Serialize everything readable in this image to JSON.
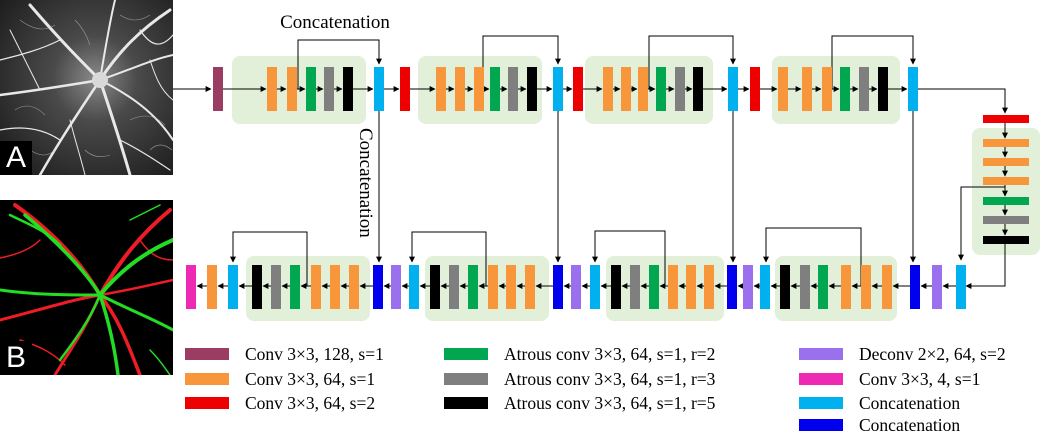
{
  "panels": {
    "input_letter": "A",
    "output_letter": "B"
  },
  "annotations": {
    "top": "Concatenation",
    "side": "Concatenation"
  },
  "colors": {
    "conv128": "#9b3d63",
    "conv64": "#f7963b",
    "conv_s2": "#ee0000",
    "atrous_r2": "#00a650",
    "atrous_r3": "#7f7f7f",
    "atrous_r5": "#000000",
    "deconv": "#9a70ee",
    "conv4": "#ee2ab4",
    "concat_light": "#00b0ef",
    "concat_dark": "#0000ee",
    "group_fill": "#e2efd9",
    "line": "#000000"
  },
  "legend": [
    {
      "label": "Conv 3×3, 128, s=1",
      "color": "#9b3d63"
    },
    {
      "label": "Conv 3×3, 64, s=1",
      "color": "#f7963b"
    },
    {
      "label": "Conv 3×3, 64, s=2",
      "color": "#ee0000"
    },
    {
      "label": "Atrous conv 3×3, 64, s=1, r=2",
      "color": "#00a650"
    },
    {
      "label": "Atrous conv 3×3, 64, s=1, r=3",
      "color": "#7f7f7f"
    },
    {
      "label": "Atrous conv 3×3, 64, s=1, r=5",
      "color": "#000000"
    },
    {
      "label": "Deconv 2×2, 64, s=2",
      "color": "#9a70ee"
    },
    {
      "label": "Conv 3×3, 4, s=1",
      "color": "#ee2ab4"
    },
    {
      "label": "Concatenation",
      "color": "#00b0ef"
    },
    {
      "label": "Concatenation",
      "color": "#0000ee"
    }
  ]
}
